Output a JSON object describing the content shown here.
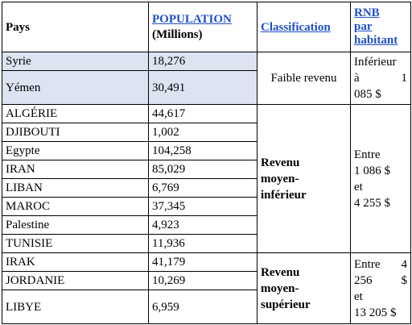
{
  "header": {
    "country": "Pays",
    "population_link": "POPULATION",
    "population_unit": "(Millions)",
    "classification": "Classification",
    "rnb_line1": "RNB",
    "rnb_line2": "par",
    "rnb_line3": "habitant"
  },
  "rows": [
    {
      "country": "Syrie",
      "population": "18,276"
    },
    {
      "country": "Yémen",
      "population": "30,491"
    },
    {
      "country": "ALGÉRIE",
      "population": "44,617"
    },
    {
      "country": "DJIBOUTI",
      "population": "1,002"
    },
    {
      "country": "Egypte",
      "population": "104,258"
    },
    {
      "country": "IRAN",
      "population": "85,029"
    },
    {
      "country": "LIBAN",
      "population": "6,769"
    },
    {
      "country": "MAROC",
      "population": "37,345"
    },
    {
      "country": "Palestine",
      "population": "4,923"
    },
    {
      "country": "TUNISIE",
      "population": "11,936"
    },
    {
      "country": "IRAK",
      "population": "41,179"
    },
    {
      "country": "JORDANIE",
      "population": "10,269"
    },
    {
      "country": "LIBYE",
      "population": "6,959"
    }
  ],
  "groups": [
    {
      "classification": "Faible revenu",
      "rnb_l1a": "Inférieur",
      "rnb_l2a": "à",
      "rnb_l2b": "1",
      "rnb_l3a": "085 $"
    },
    {
      "classification_l1": "Revenu",
      "classification_l2": "moyen-",
      "classification_l3": "inférieur",
      "rnb_l1a": "Entre",
      "rnb_l2a": "1 086 $",
      "rnb_l3a": "et",
      "rnb_l4a": "4 255 $"
    },
    {
      "classification_l1": "Revenu",
      "classification_l2": "moyen-",
      "classification_l3": "supérieur",
      "rnb_l1a": "Entre",
      "rnb_l1b": "4",
      "rnb_l2a": "256",
      "rnb_l2b": "$",
      "rnb_l3a": "et",
      "rnb_l4a": "13 205 $"
    }
  ],
  "colors": {
    "link": "#1f4fc9",
    "low_income_row_bg": "#dce3f1"
  }
}
